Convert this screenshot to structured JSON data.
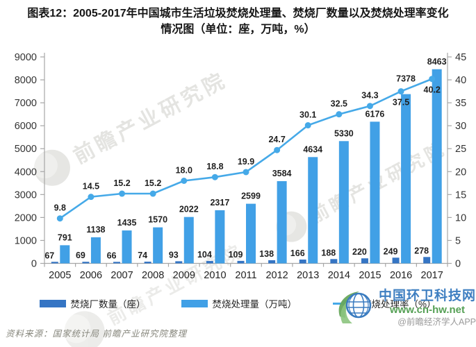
{
  "title": {
    "line1": "图表12：2005-2017年中国城市生活垃圾焚烧处理量、焚烧厂数量以及焚烧处理率变化",
    "line2": "情况图（单位：座，万吨，%）"
  },
  "chart_data": {
    "type": "bar",
    "categories": [
      2005,
      2006,
      2007,
      2008,
      2009,
      2010,
      2011,
      2012,
      2013,
      2014,
      2015,
      2016,
      2017
    ],
    "series": [
      {
        "name": "焚烧厂数量（座）",
        "type": "bar",
        "axis": "left",
        "color": "#3575C4",
        "values": [
          67,
          69,
          66,
          74,
          93,
          104,
          109,
          138,
          166,
          188,
          220,
          249,
          278
        ]
      },
      {
        "name": "焚烧处理量（万吨）",
        "type": "bar",
        "axis": "left",
        "color": "#41A0E6",
        "values": [
          791,
          1138,
          1435,
          1570,
          2022,
          2317,
          2599,
          3584,
          4634,
          5330,
          6176,
          7378,
          8463
        ]
      },
      {
        "name": "焚烧处理率（%）",
        "type": "line",
        "axis": "right",
        "color": "#45A9E8",
        "values": [
          9.8,
          14.5,
          15.2,
          15.2,
          18.0,
          18.8,
          19.9,
          24.7,
          30.1,
          32.5,
          34.3,
          37.5,
          40.2
        ],
        "labels": [
          "9.8",
          "14.5",
          "15.2",
          "15.2",
          "18.0",
          "18.8",
          "19.9",
          "24.7",
          "30.1",
          "32.5",
          "34.3",
          "37.5",
          "40.2"
        ]
      }
    ],
    "left_axis": {
      "min": 0,
      "max": 9000,
      "step": 1000
    },
    "right_axis": {
      "min": 0,
      "max": 45,
      "step": 5
    },
    "grid": false,
    "legend_position": "bottom",
    "rate_label_below_years": [
      2016,
      2017
    ]
  },
  "source_note": "资料来源：国家统计局  前瞻产业研究院整理",
  "watermarks": {
    "inline_text": "前瞻产业研究院",
    "brand": {
      "site_name": "中国环卫科技网",
      "site_url": "www.cn-hw.net",
      "app_handle": "@前瞻经济学人APP"
    }
  }
}
